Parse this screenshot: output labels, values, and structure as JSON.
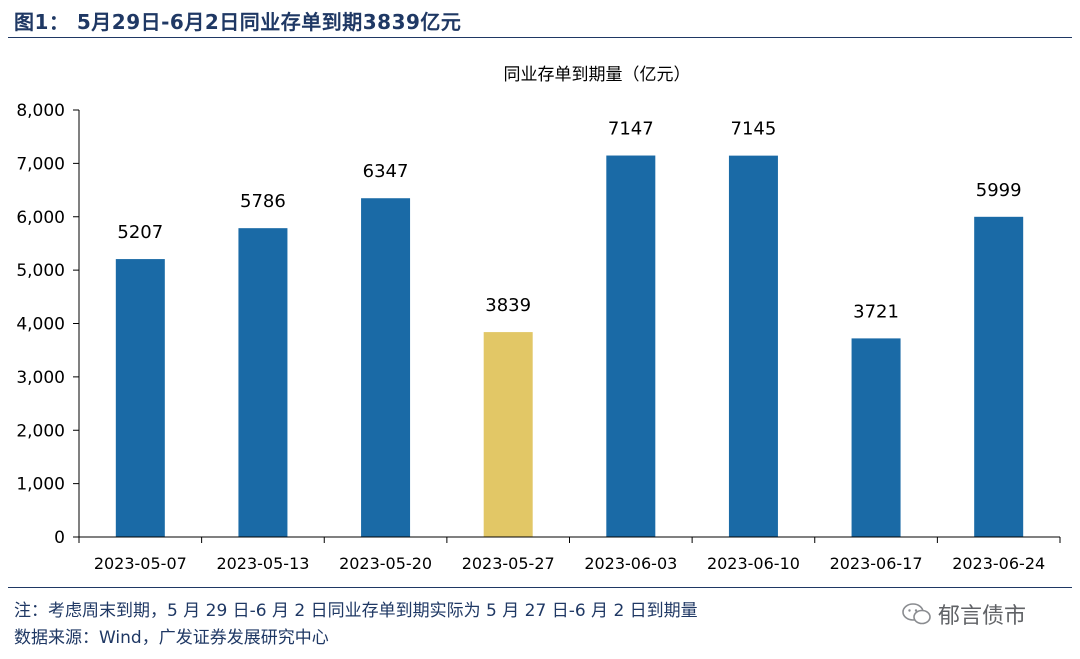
{
  "figure": {
    "title": "图1：  5月29日-6月2日同业存单到期3839亿元"
  },
  "notes": {
    "note": "注：考虑周末到期，5 月 29 日-6 月 2 日同业存单到期实际为 5 月 27 日-6 月 2 日到期量",
    "source": "数据来源：Wind，广发证券发展研究中心"
  },
  "watermark": {
    "text": "郁言债市",
    "icon": "wechat-icon"
  },
  "chart_data": {
    "type": "bar",
    "title": "同业存单到期量（亿元）",
    "xlabel": "",
    "ylabel": "",
    "categories": [
      "2023-05-07",
      "2023-05-13",
      "2023-05-20",
      "2023-05-27",
      "2023-06-03",
      "2023-06-10",
      "2023-06-17",
      "2023-06-24"
    ],
    "values": [
      5207,
      5786,
      6347,
      3839,
      7147,
      7145,
      3721,
      5999
    ],
    "highlight_index": 3,
    "ylim": [
      0,
      8000
    ],
    "yticks": [
      0,
      1000,
      2000,
      3000,
      4000,
      5000,
      6000,
      7000,
      8000
    ],
    "ytick_labels": [
      "0",
      "1,000",
      "2,000",
      "3,000",
      "4,000",
      "5,000",
      "6,000",
      "7,000",
      "8,000"
    ],
    "grid": false,
    "legend": "none",
    "colors": {
      "bar": "#1a6aa6",
      "highlight": "#e2c766",
      "axis": "#000000"
    }
  }
}
